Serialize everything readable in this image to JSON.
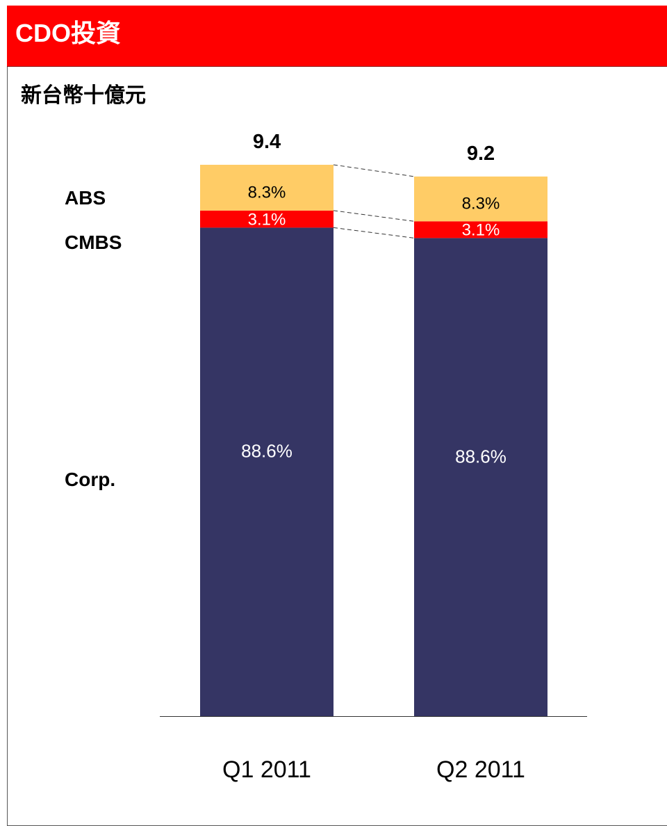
{
  "header": {
    "title": "CDO投資"
  },
  "unit_label": "新台幣十億元",
  "colors": {
    "header_background": "#ff0000",
    "corp": "#353564",
    "cmbs": "#ff0000",
    "abs": "#ffcc66",
    "axis": "#333333",
    "connector": "#333333"
  },
  "chart_data": {
    "type": "bar",
    "stacked": true,
    "normalized": true,
    "categories": [
      "Q1 2011",
      "Q2 2011"
    ],
    "totals": [
      9.4,
      9.2
    ],
    "total_labels": [
      "9.4",
      "9.2"
    ],
    "series": [
      {
        "name": "Corp.",
        "values": [
          88.6,
          88.6
        ],
        "labels": [
          "88.6%",
          "88.6%"
        ]
      },
      {
        "name": "CMBS",
        "values": [
          3.1,
          3.1
        ],
        "labels": [
          "3.1%",
          "3.1%"
        ]
      },
      {
        "name": "ABS",
        "values": [
          8.3,
          8.3
        ],
        "labels": [
          "8.3%",
          "8.3%"
        ]
      }
    ],
    "legend": "left, beside segments",
    "connector_lines": "dashed, between segment boundaries",
    "grid": false
  }
}
